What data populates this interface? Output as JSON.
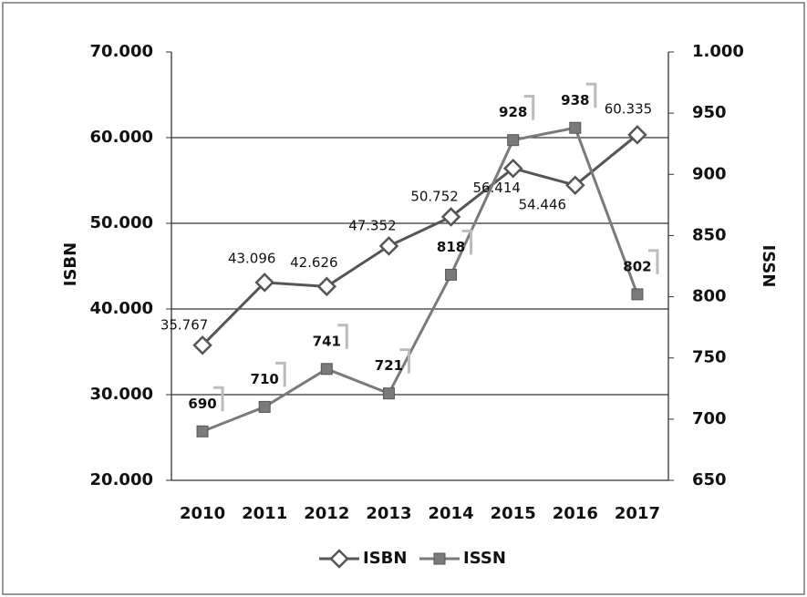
{
  "chart_data": {
    "type": "line",
    "categories": [
      "2010",
      "2011",
      "2012",
      "2013",
      "2014",
      "2015",
      "2016",
      "2017"
    ],
    "ylabel": "ISBN",
    "y2label": "ISSN",
    "series": [
      {
        "name": "ISBN",
        "color": "#555555",
        "marker": "diamond",
        "values": [
          35767,
          43096,
          42626,
          47352,
          50752,
          56414,
          54446,
          60335
        ],
        "value_labels": [
          "35.767",
          "43.096",
          "42.626",
          "47.352",
          "50.752",
          "56.414",
          "54.446",
          "60.335"
        ]
      },
      {
        "name": "ISSN",
        "color": "#7a7a7a",
        "marker": "square",
        "axis": "y2",
        "values": [
          690,
          710,
          741,
          721,
          818,
          928,
          938,
          802
        ]
      }
    ],
    "ylim": [
      20000,
      70000
    ],
    "yticks": [
      {
        "value": 20000,
        "label": "20.000"
      },
      {
        "value": 30000,
        "label": "30.000"
      },
      {
        "value": 40000,
        "label": "40.000"
      },
      {
        "value": 50000,
        "label": "50.000"
      },
      {
        "value": 60000,
        "label": "60.000"
      },
      {
        "value": 70000,
        "label": "70.000"
      }
    ],
    "y2lim": [
      650,
      1000
    ],
    "y2ticks": [
      650,
      700,
      750,
      800,
      850,
      900,
      950,
      {
        "value": 1000,
        "label": "1.000"
      }
    ],
    "grid": true,
    "legend": "bottom"
  }
}
